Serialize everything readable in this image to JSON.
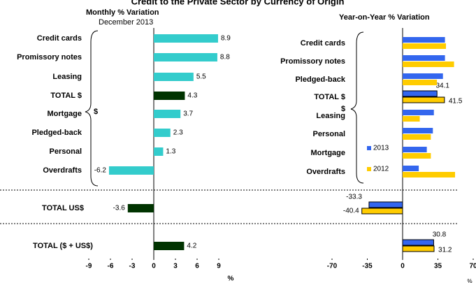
{
  "chart_data": [
    {
      "type": "hbar",
      "title": "Credit to the Private Sector by Currency of Origin",
      "subtitle": "Monthly % Variation",
      "note": "December 2013",
      "categories": [
        "Credit cards",
        "Promissory notes",
        "Leasing",
        "TOTAL $",
        "Mortgage",
        "Pledged-back",
        "Personal",
        "Overdrafts",
        "TOTAL US$",
        "TOTAL ($ + US$)"
      ],
      "values": [
        8.9,
        8.8,
        5.5,
        4.3,
        3.7,
        2.3,
        1.3,
        -6.2,
        -3.6,
        4.2
      ],
      "colors": [
        "#33cccc",
        "#33cccc",
        "#33cccc",
        "#003300",
        "#33cccc",
        "#33cccc",
        "#33cccc",
        "#33cccc",
        "#003300",
        "#003300"
      ],
      "xlim": [
        -9,
        9
      ],
      "xticks": [
        -9,
        -6,
        -3,
        0,
        3,
        6,
        9
      ],
      "xlabel": "%",
      "group_label": "$"
    },
    {
      "type": "grouped-hbar",
      "subtitle": "Year-on-Year % Variation",
      "categories": [
        "Credit cards",
        "Promissory notes",
        "Pledged-back",
        "TOTAL $",
        "Leasing",
        "Personal",
        "Mortgage",
        "Overdrafts",
        null,
        null
      ],
      "series": [
        {
          "name": "2013",
          "color": "#3366ee",
          "values": [
            42,
            42,
            40,
            34.1,
            31,
            30,
            24,
            16,
            -33.3,
            30.8
          ],
          "value_labels": [
            null,
            null,
            null,
            "34.1",
            null,
            null,
            null,
            null,
            "-33.3",
            "30.8"
          ]
        },
        {
          "name": "2012",
          "color": "#ffcc00",
          "values": [
            43,
            51,
            34,
            41.5,
            17,
            28,
            28,
            52,
            -40.4,
            31.2
          ],
          "value_labels": [
            null,
            null,
            null,
            "41.5",
            null,
            null,
            null,
            null,
            "-40.4",
            "31.2"
          ]
        }
      ],
      "outlined": [
        3,
        8,
        9
      ],
      "xlim": [
        -70,
        70
      ],
      "xticks": [
        -70,
        -35,
        0,
        35,
        70
      ],
      "xlabel": "%",
      "group_label": "$"
    }
  ]
}
